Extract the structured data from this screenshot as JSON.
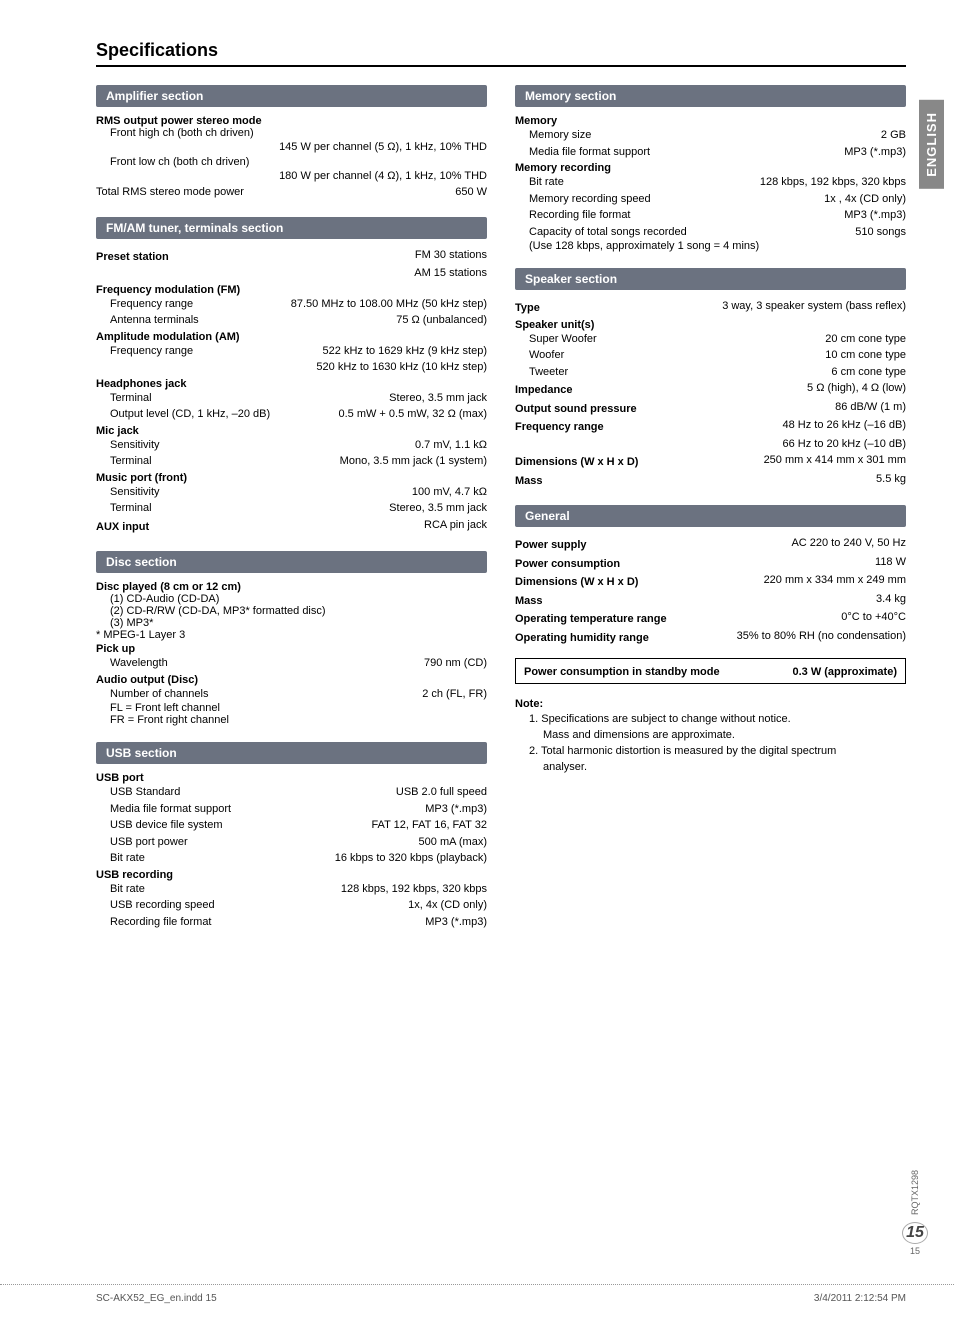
{
  "page_title": "Specifications",
  "side_tab": "ENGLISH",
  "doc_code": "RQTX1298",
  "page_num_large": "15",
  "page_num_small": "15",
  "footer_left": "SC-AKX52_EG_en.indd   15",
  "footer_right": "3/4/2011   2:12:54 PM",
  "sections": {
    "amp": {
      "header": "Amplifier section",
      "sub1": "RMS output power stereo mode",
      "l1": "Front high ch (both ch driven)",
      "v1": "145 W per channel (5 Ω), 1 kHz, 10% THD",
      "l2": "Front low ch (both ch driven)",
      "v2": "180 W per channel (4 Ω), 1 kHz, 10% THD",
      "l3": "Total RMS stereo mode power",
      "v3": "650 W"
    },
    "tuner": {
      "header": "FM/AM tuner, terminals section",
      "preset_l": "Preset station",
      "preset_v1": "FM 30 stations",
      "preset_v2": "AM 15 stations",
      "fm_h": "Frequency modulation (FM)",
      "fm_l1": "Frequency range",
      "fm_v1": "87.50 MHz to 108.00 MHz (50 kHz step)",
      "fm_l2": "Antenna terminals",
      "fm_v2": "75 Ω (unbalanced)",
      "am_h": "Amplitude modulation (AM)",
      "am_l1": "Frequency range",
      "am_v1": "522 kHz to 1629 kHz (9 kHz step)",
      "am_v2": "520 kHz to 1630 kHz (10 kHz step)",
      "hp_h": "Headphones jack",
      "hp_l1": "Terminal",
      "hp_v1": "Stereo, 3.5 mm jack",
      "hp_l2": "Output level (CD, 1 kHz, –20 dB)",
      "hp_v2": "0.5 mW + 0.5 mW, 32 Ω (max)",
      "mic_h": "Mic jack",
      "mic_l1": "Sensitivity",
      "mic_v1": "0.7 mV, 1.1 kΩ",
      "mic_l2": "Terminal",
      "mic_v2": "Mono, 3.5 mm jack (1 system)",
      "mp_h": "Music port (front)",
      "mp_l1": "Sensitivity",
      "mp_v1": "100 mV, 4.7 kΩ",
      "mp_l2": "Terminal",
      "mp_v2": "Stereo, 3.5 mm jack",
      "aux_l": "AUX input",
      "aux_v": "RCA pin jack"
    },
    "disc": {
      "header": "Disc section",
      "h1": "Disc played (8 cm or 12 cm)",
      "d1": "(1) CD-Audio (CD-DA)",
      "d2": "(2) CD-R/RW (CD-DA, MP3* formatted disc)",
      "d3": "(3) MP3*",
      "mpeg": "* MPEG-1 Layer 3",
      "pu_h": "Pick up",
      "pu_l": "Wavelength",
      "pu_v": "790 nm (CD)",
      "ao_h": "Audio output (Disc)",
      "ao_l": "Number of channels",
      "ao_v": "2 ch (FL, FR)",
      "fl": "FL = Front left channel",
      "fr": "FR = Front right channel"
    },
    "usb": {
      "header": "USB section",
      "p_h": "USB port",
      "l1": "USB Standard",
      "v1": "USB 2.0 full speed",
      "l2": "Media file format support",
      "v2": "MP3 (*.mp3)",
      "l3": "USB device file system",
      "v3": "FAT 12, FAT 16, FAT 32",
      "l4": "USB port power",
      "v4": "500 mA (max)",
      "l5": "Bit rate",
      "v5": "16 kbps to 320 kbps (playback)",
      "r_h": "USB recording",
      "r_l1": "Bit rate",
      "r_v1": "128 kbps, 192 kbps, 320 kbps",
      "r_l2": "USB recording speed",
      "r_v2": "1x, 4x (CD only)",
      "r_l3": "Recording file format",
      "r_v3": "MP3 (*.mp3)"
    },
    "mem": {
      "header": "Memory section",
      "m_h": "Memory",
      "m_l1": "Memory size",
      "m_v1": "2 GB",
      "m_l2": "Media file format support",
      "m_v2": "MP3 (*.mp3)",
      "r_h": "Memory recording",
      "r_l1": "Bit rate",
      "r_v1": "128 kbps, 192 kbps, 320 kbps",
      "r_l2": "Memory recording speed",
      "r_v2": "1x , 4x (CD only)",
      "r_l3": "Recording file format",
      "r_v3": "MP3 (*.mp3)",
      "r_l4": "Capacity of total songs recorded",
      "r_v4": "510 songs",
      "r_note": "(Use 128 kbps, approximately 1 song = 4 mins)"
    },
    "spk": {
      "header": "Speaker section",
      "t_l": "Type",
      "t_v": "3 way, 3 speaker system (bass reflex)",
      "u_h": "Speaker unit(s)",
      "u_l1": "Super Woofer",
      "u_v1": "20 cm cone type",
      "u_l2": "Woofer",
      "u_v2": "10 cm cone type",
      "u_l3": "Tweeter",
      "u_v3": "6 cm cone type",
      "imp_l": "Impedance",
      "imp_v": "5 Ω (high), 4 Ω (low)",
      "osp_l": "Output sound pressure",
      "osp_v": "86 dB/W (1 m)",
      "fr_l": "Frequency range",
      "fr_v1": "48 Hz to 26 kHz (–16 dB)",
      "fr_v2": "66 Hz to 20 kHz (–10 dB)",
      "dim_l": "Dimensions (W x H x D)",
      "dim_v": "250 mm x 414 mm x 301 mm",
      "mass_l": "Mass",
      "mass_v": "5.5 kg"
    },
    "gen": {
      "header": "General",
      "l1": "Power supply",
      "v1": "AC 220 to 240 V, 50 Hz",
      "l2": "Power consumption",
      "v2": "118 W",
      "l3": "Dimensions (W x H x D)",
      "v3": "220 mm x 334 mm x 249 mm",
      "l4": "Mass",
      "v4": "3.4 kg",
      "l5": "Operating temperature range",
      "v5": "0°C to +40°C",
      "l6": "Operating humidity range",
      "v6": "35% to 80% RH (no condensation)",
      "box_l": "Power consumption in standby mode",
      "box_v": "0.3 W (approximate)"
    },
    "note": {
      "title": "Note:",
      "n1": "1. Specifications are subject to change without notice.",
      "n1b": "Mass and dimensions are approximate.",
      "n2": "2. Total harmonic distortion is measured by the digital spectrum",
      "n2b": "analyser."
    }
  }
}
